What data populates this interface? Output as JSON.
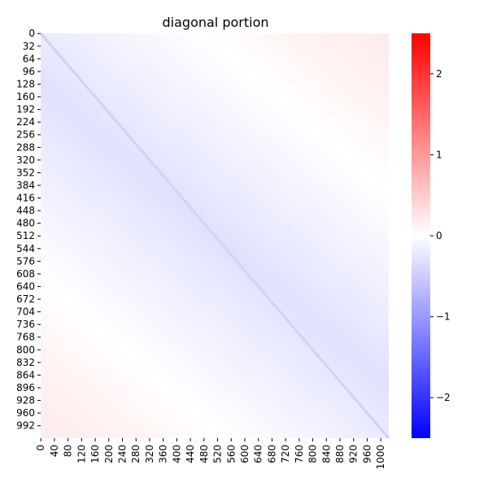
{
  "chart_data": {
    "type": "heatmap",
    "title": "diagonal portion",
    "xlabel": "",
    "ylabel": "",
    "matrix_size": 1024,
    "y_tick_labels": [
      "0",
      "32",
      "64",
      "96",
      "128",
      "160",
      "192",
      "224",
      "256",
      "288",
      "320",
      "352",
      "384",
      "416",
      "448",
      "480",
      "512",
      "544",
      "576",
      "608",
      "640",
      "672",
      "704",
      "736",
      "768",
      "800",
      "832",
      "864",
      "896",
      "928",
      "960",
      "992"
    ],
    "x_tick_labels": [
      "0",
      "40",
      "80",
      "120",
      "160",
      "200",
      "240",
      "280",
      "320",
      "360",
      "400",
      "440",
      "480",
      "520",
      "560",
      "600",
      "640",
      "680",
      "720",
      "760",
      "800",
      "840",
      "880",
      "920",
      "960",
      "1000"
    ],
    "colorbar": {
      "vmin": -2.5,
      "vmax": 2.5,
      "ticks": [
        2,
        1,
        0,
        -1,
        -2
      ],
      "tick_labels": [
        "2",
        "1",
        "0",
        "−1",
        "−2"
      ],
      "colormap": "bwr",
      "low_color": "#0000ff",
      "mid_color": "#ffffff",
      "high_color": "#ff0000"
    },
    "value_model": {
      "description_of_pattern": "value depends on (column - row); negative near main diagonal, positive toward corners",
      "diff_values": [
        -1000,
        -800,
        -600,
        -400,
        -200,
        0,
        200,
        400,
        600,
        800,
        1000
      ],
      "values": [
        0.2,
        0.12,
        0.02,
        -0.08,
        -0.18,
        -0.3,
        -0.18,
        -0.08,
        0.02,
        0.12,
        0.2
      ]
    },
    "grid": false
  }
}
